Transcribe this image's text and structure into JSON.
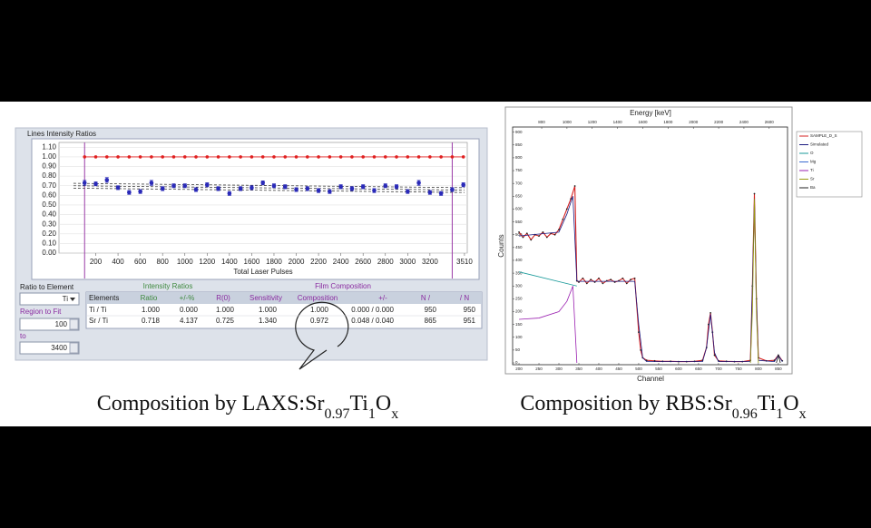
{
  "laxs": {
    "chart": {
      "type": "scatter",
      "title": "Lines Intensity Ratios",
      "x_label": "Total Laser Pulses",
      "xlim": [
        -130,
        3535
      ],
      "ylim": [
        0,
        1.15
      ],
      "xticks": [
        200,
        400,
        600,
        800,
        1000,
        1200,
        1400,
        1600,
        1800,
        2000,
        2200,
        2400,
        2600,
        2800,
        3000,
        3200,
        3510
      ],
      "yticks": [
        {
          "value": 0,
          "label": "0.00"
        },
        {
          "value": 0.1,
          "label": "0.10"
        },
        {
          "value": 0.2,
          "label": "0.20"
        },
        {
          "value": 0.3,
          "label": "0.30"
        },
        {
          "value": 0.4,
          "label": "0.40"
        },
        {
          "value": 0.5,
          "label": "0.50"
        },
        {
          "value": 0.6,
          "label": "0.60"
        },
        {
          "value": 0.7,
          "label": "0.70"
        },
        {
          "value": 0.8,
          "label": "0.80"
        },
        {
          "value": 0.9,
          "label": "0.90"
        },
        {
          "value": 1.0,
          "label": "1.00"
        },
        {
          "value": 1.1,
          "label": "1.10"
        }
      ],
      "grid": true,
      "reference": {
        "color": "#e02020",
        "x": [
          100,
          200,
          300,
          400,
          500,
          600,
          700,
          800,
          900,
          1000,
          1100,
          1200,
          1300,
          1400,
          1500,
          1600,
          1700,
          1800,
          1900,
          2000,
          2100,
          2200,
          2300,
          2400,
          2500,
          2600,
          2700,
          2800,
          2900,
          3000,
          3100,
          3200,
          3300,
          3400,
          3500
        ],
        "values": [
          1,
          1,
          1,
          1,
          1,
          1,
          1,
          1,
          1,
          1,
          1,
          1,
          1,
          1,
          1,
          1,
          1,
          1,
          1,
          1,
          1,
          1,
          1,
          1,
          1,
          1,
          1,
          1,
          1,
          1,
          1,
          1,
          1,
          1,
          1
        ]
      },
      "measured": {
        "color": "#2a2ab8",
        "x": [
          100,
          200,
          300,
          400,
          500,
          600,
          700,
          800,
          900,
          1000,
          1100,
          1200,
          1300,
          1400,
          1500,
          1600,
          1700,
          1800,
          1900,
          2000,
          2100,
          2200,
          2300,
          2400,
          2500,
          2600,
          2700,
          2800,
          2900,
          3000,
          3100,
          3200,
          3300,
          3400,
          3500
        ],
        "values": [
          0.73,
          0.72,
          0.76,
          0.68,
          0.63,
          0.64,
          0.73,
          0.67,
          0.7,
          0.7,
          0.66,
          0.71,
          0.67,
          0.62,
          0.67,
          0.68,
          0.73,
          0.7,
          0.69,
          0.66,
          0.67,
          0.65,
          0.64,
          0.69,
          0.67,
          0.69,
          0.65,
          0.7,
          0.69,
          0.64,
          0.73,
          0.63,
          0.62,
          0.66,
          0.71
        ],
        "errors": [
          0.025,
          0.02,
          0.025,
          0.02,
          0.02,
          0.02,
          0.025,
          0.02,
          0.02,
          0.02,
          0.02,
          0.02,
          0.02,
          0.02,
          0.02,
          0.02,
          0.02,
          0.02,
          0.02,
          0.02,
          0.02,
          0.02,
          0.02,
          0.02,
          0.02,
          0.02,
          0.02,
          0.02,
          0.02,
          0.02,
          0.025,
          0.02,
          0.02,
          0.02,
          0.02
        ]
      },
      "fit": {
        "color": "#404040",
        "x": [
          0,
          3510
        ],
        "values": [
          0.7,
          0.655
        ],
        "band": 0.025
      }
    },
    "form": {
      "ratio_label": "Ratio to Element",
      "element": "Ti",
      "region_label": "Region to Fit",
      "from": 100,
      "to_label": "to",
      "to": 3400
    },
    "table": {
      "groups": [
        "Intensity Ratios",
        "Film Composition"
      ],
      "columns": [
        "Elements",
        "Ratio",
        "+/-%",
        "R(0)",
        "Sensitivity",
        "Composition",
        "+/-",
        "N /",
        "/ N"
      ],
      "rows": [
        [
          "Ti / Ti",
          "1.000",
          "0.000",
          "1.000",
          "1.000",
          "1.000",
          "0.000 / 0.000",
          "950",
          "950"
        ],
        [
          "Sr / Ti",
          "0.718",
          "4.137",
          "0.725",
          "1.340",
          "0.972",
          "0.048 / 0.040",
          "865",
          "951"
        ]
      ]
    }
  },
  "caption_left": {
    "text": "Composition by LAXS:",
    "formula": [
      {
        "el": "Sr",
        "sub": "0.97"
      },
      {
        "el": "Ti",
        "sub": "1"
      },
      {
        "el": "O",
        "sub": "x"
      }
    ]
  },
  "rbs": {
    "chart": {
      "type": "line",
      "x2_label": "Energy [keV]",
      "x_label": "Channel",
      "y_label": "Counts",
      "xlim": [
        184,
        873
      ],
      "xticks": [
        200,
        250,
        300,
        350,
        400,
        450,
        500,
        550,
        600,
        650,
        700,
        750,
        800,
        850
      ],
      "x2lim": [
        570,
        2745
      ],
      "x2ticks": [
        800,
        1000,
        1200,
        1400,
        1600,
        1800,
        2000,
        2200,
        2400,
        2600
      ],
      "ylim": [
        -7,
        920
      ],
      "yticks": [
        0,
        50,
        100,
        150,
        200,
        250,
        300,
        350,
        400,
        450,
        500,
        550,
        600,
        650,
        700,
        750,
        800,
        850,
        900
      ],
      "series": [
        {
          "name": "SAMPLE_D_S",
          "color": "#d42020",
          "x": [
            200,
            210,
            220,
            230,
            240,
            250,
            260,
            270,
            280,
            290,
            300,
            310,
            320,
            330,
            340,
            345,
            350,
            360,
            370,
            380,
            390,
            400,
            410,
            420,
            430,
            440,
            450,
            460,
            470,
            480,
            490,
            500,
            505,
            510,
            520,
            540,
            560,
            580,
            600,
            620,
            640,
            660,
            670,
            675,
            680,
            685,
            690,
            700,
            720,
            740,
            760,
            780,
            785,
            790,
            795,
            800,
            820,
            840,
            850,
            860
          ],
          "values": [
            510,
            490,
            505,
            480,
            500,
            495,
            510,
            490,
            505,
            500,
            520,
            560,
            600,
            640,
            690,
            320,
            315,
            330,
            310,
            325,
            315,
            330,
            310,
            320,
            325,
            315,
            320,
            330,
            310,
            325,
            330,
            120,
            50,
            20,
            10,
            8,
            6,
            6,
            5,
            5,
            6,
            10,
            60,
            150,
            195,
            120,
            30,
            8,
            6,
            5,
            5,
            10,
            300,
            660,
            250,
            20,
            8,
            10,
            30,
            8
          ]
        },
        {
          "name": "Simulated",
          "color": "#1a1a80",
          "x": [
            200,
            300,
            320,
            335,
            345,
            350,
            490,
            500,
            510,
            520,
            660,
            670,
            680,
            690,
            700,
            780,
            785,
            790,
            795,
            800,
            840,
            850,
            860
          ],
          "values": [
            495,
            510,
            580,
            650,
            320,
            318,
            318,
            150,
            20,
            5,
            5,
            60,
            190,
            40,
            5,
            5,
            300,
            640,
            250,
            10,
            5,
            30,
            5
          ]
        },
        {
          "name": "O",
          "color": "#1a9a9a",
          "x": [
            200,
            345
          ],
          "values": [
            355,
            300
          ]
        },
        {
          "name": "Mg",
          "color": "#3a6ad0",
          "x": [],
          "values": []
        },
        {
          "name": "Ti",
          "color": "#9a20b0",
          "x": [
            200,
            250,
            300,
            320,
            335,
            340,
            345
          ],
          "values": [
            170,
            175,
            200,
            240,
            300,
            150,
            0
          ]
        },
        {
          "name": "Sr",
          "color": "#9a9a10",
          "x": [
            780,
            785,
            790,
            795,
            800
          ],
          "values": [
            0,
            200,
            640,
            200,
            0
          ]
        },
        {
          "name": "Ba",
          "color": "#202020",
          "x": [
            845,
            850,
            855
          ],
          "values": [
            0,
            30,
            0
          ]
        }
      ]
    }
  },
  "caption_right": {
    "text": "Composition by RBS:",
    "formula": [
      {
        "el": "Sr",
        "sub": "0.96"
      },
      {
        "el": "Ti",
        "sub": "1"
      },
      {
        "el": "O",
        "sub": "x"
      }
    ]
  }
}
